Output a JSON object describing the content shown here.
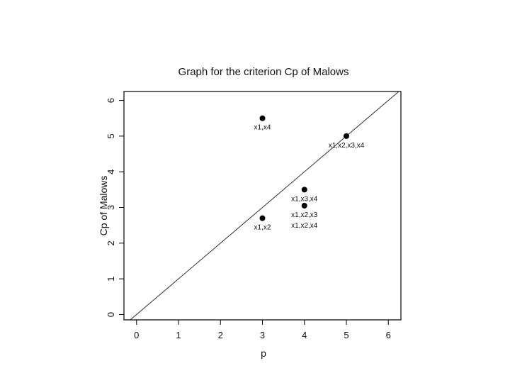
{
  "chart_data": {
    "type": "scatter",
    "title": "Graph for the criterion Cp of Malows",
    "xlabel": "p",
    "ylabel": "Cp of Malows",
    "xlim": [
      -0.3,
      6.3
    ],
    "ylim": [
      -0.15,
      6.25
    ],
    "xticks": [
      0,
      1,
      2,
      3,
      4,
      5,
      6
    ],
    "yticks": [
      0,
      1,
      2,
      3,
      4,
      5,
      6
    ],
    "grid": false,
    "reference_line": {
      "slope": 1,
      "intercept": 0
    },
    "points": [
      {
        "x": 3,
        "y": 5.5,
        "label": "x1,x4"
      },
      {
        "x": 5,
        "y": 5.0,
        "label": "x1,x2,x3,x4"
      },
      {
        "x": 4,
        "y": 3.5,
        "label": "x1,x3,x4"
      },
      {
        "x": 4,
        "y": 3.05,
        "label": "x1,x2,x3"
      },
      {
        "x": 3,
        "y": 2.7,
        "label": "x1,x2"
      }
    ],
    "extra_labels": [
      {
        "x": 4,
        "y": 3.05,
        "text": "x1,x2,x4"
      }
    ]
  }
}
